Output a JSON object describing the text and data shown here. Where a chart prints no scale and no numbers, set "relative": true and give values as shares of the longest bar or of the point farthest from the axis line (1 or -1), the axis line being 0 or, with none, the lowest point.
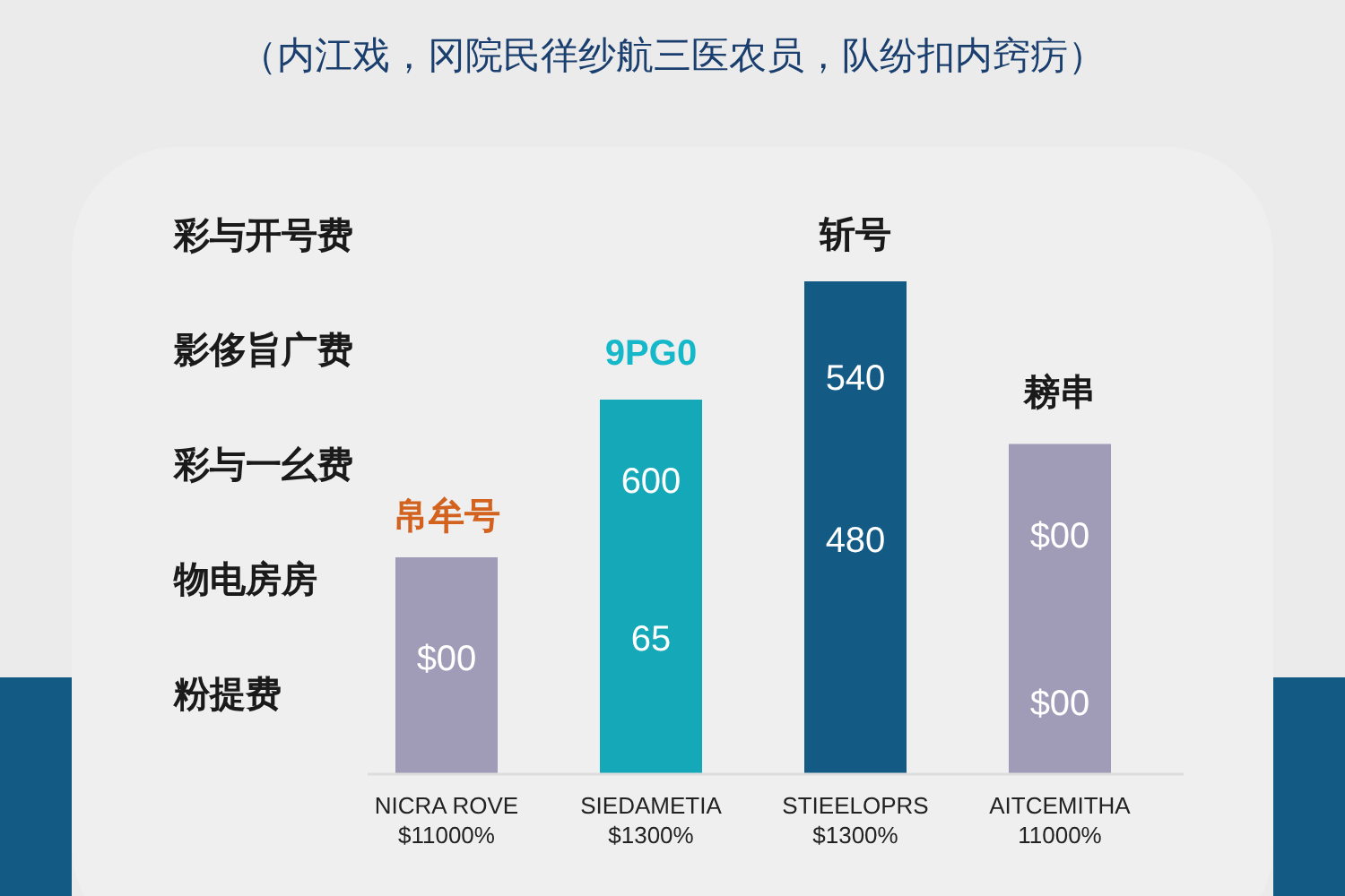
{
  "chart_data": {
    "type": "bar",
    "relative": true,
    "subtitle": "（内江戏，冈院民徉纱航三医农员，队纷扣内窍疠）",
    "categories": [
      "NICRA ROVE\n$11000%",
      "SIEDAMETIA\n$1300%",
      "STIEELOPRS\n$1300%",
      "AITCEMITHA\n11000%"
    ],
    "values": [
      0.44,
      0.76,
      1,
      0.67
    ],
    "colors": [
      "#a09cb8",
      "#14a8b8",
      "#135a85",
      "#a09cb8"
    ],
    "annotations": [
      "彩与开号费",
      "影侈旨广费",
      "彩与一幺费",
      "物电房房",
      "粉提费",
      "帛牟号",
      "$00",
      "9PG0",
      "600",
      "65",
      "斩号",
      "540",
      "480",
      "耪串",
      "$00",
      "$00"
    ]
  }
}
